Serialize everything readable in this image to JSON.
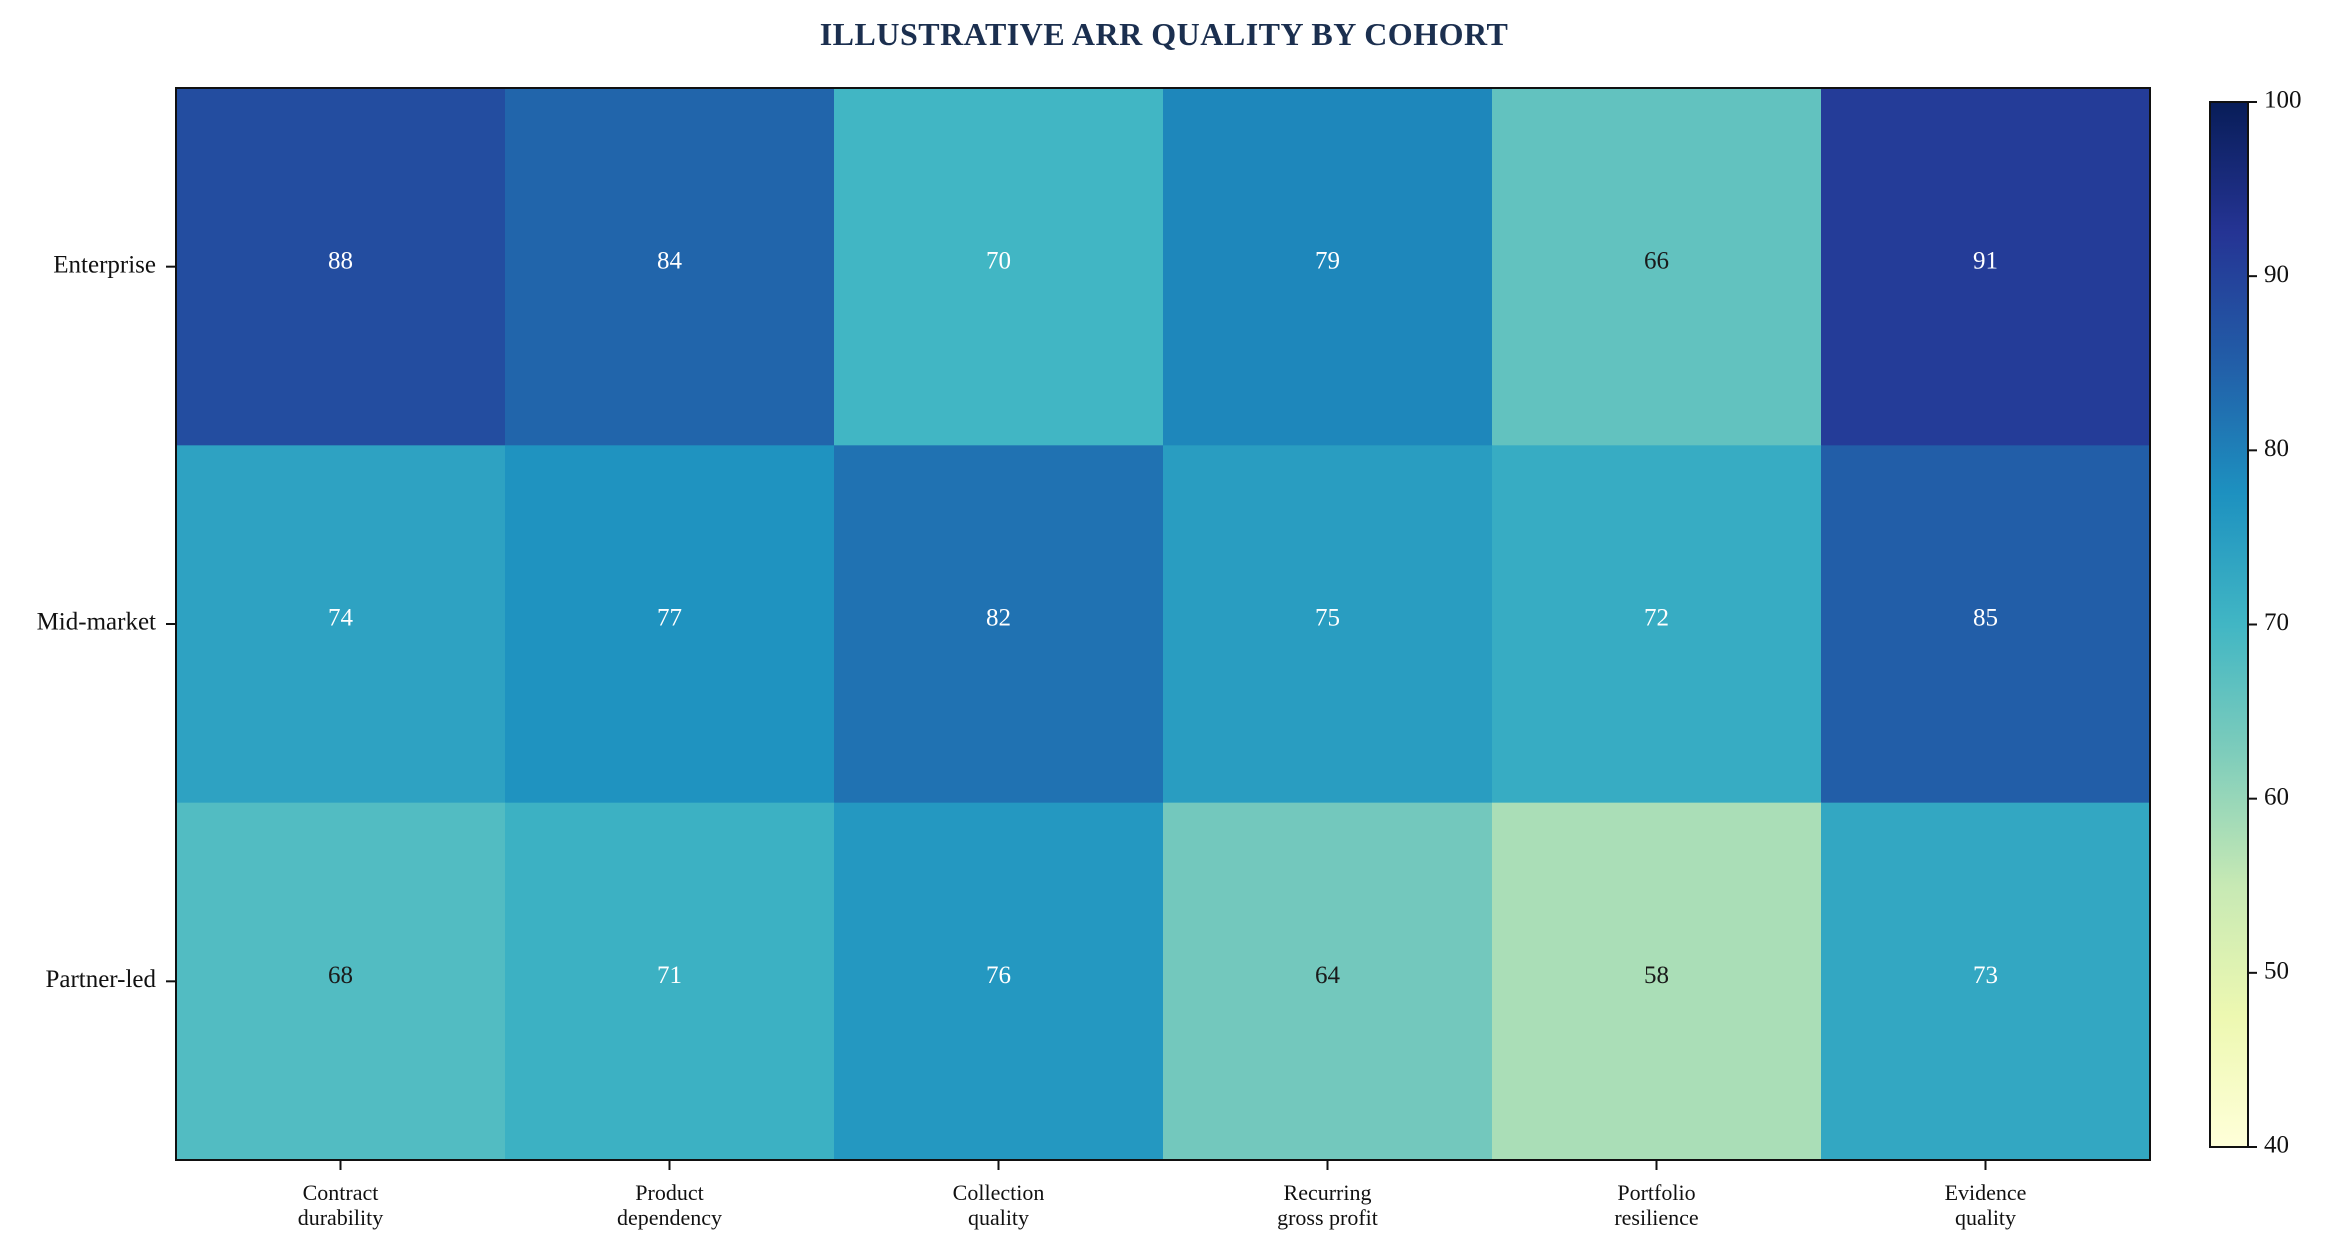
{
  "chart_data": {
    "type": "heatmap",
    "title": "ILLUSTRATIVE ARR QUALITY BY COHORT",
    "xlabel": "",
    "ylabel": "",
    "rows": [
      "Enterprise",
      "Mid-market",
      "Partner-led"
    ],
    "columns": [
      [
        "Contract",
        "durability"
      ],
      [
        "Product",
        "dependency"
      ],
      [
        "Collection",
        "quality"
      ],
      [
        "Recurring",
        "gross profit"
      ],
      [
        "Portfolio",
        "resilience"
      ],
      [
        "Evidence",
        "quality"
      ]
    ],
    "values": [
      [
        88,
        84,
        70,
        79,
        66,
        91
      ],
      [
        74,
        77,
        82,
        75,
        72,
        85
      ],
      [
        68,
        71,
        76,
        64,
        58,
        73
      ]
    ],
    "colorbar": {
      "min": 40,
      "max": 100,
      "ticks": [
        40,
        50,
        60,
        70,
        80,
        90,
        100
      ],
      "colormap": "YlGnBu"
    },
    "grid": false,
    "legend": "colorbar-right"
  }
}
